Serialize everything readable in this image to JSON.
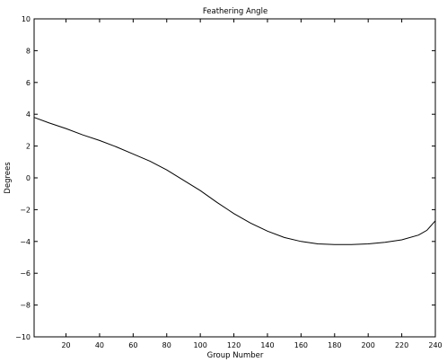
{
  "chart_data": {
    "type": "line",
    "title": "Feathering Angle",
    "xlabel": "Group Number",
    "ylabel": "Degrees",
    "xlim": [
      1,
      240
    ],
    "ylim": [
      -10,
      10
    ],
    "xticks": [
      "20",
      "40",
      "60",
      "80",
      "100",
      "120",
      "140",
      "160",
      "180",
      "200",
      "220",
      "240"
    ],
    "xtick_values": [
      20,
      40,
      60,
      80,
      100,
      120,
      140,
      160,
      180,
      200,
      220,
      240
    ],
    "yticks": [
      "10",
      "8",
      "6",
      "4",
      "2",
      "0",
      "−2",
      "−4",
      "−6",
      "−8",
      "−10"
    ],
    "ytick_values": [
      10,
      8,
      6,
      4,
      2,
      0,
      -2,
      -4,
      -6,
      -8,
      -10
    ],
    "grid": false,
    "series": [
      {
        "color": "#000000",
        "x": [
          1,
          10,
          20,
          30,
          40,
          50,
          60,
          70,
          80,
          90,
          100,
          110,
          120,
          130,
          140,
          150,
          160,
          170,
          180,
          190,
          200,
          210,
          220,
          230,
          235,
          240
        ],
        "y": [
          3.8,
          3.45,
          3.1,
          2.7,
          2.35,
          1.95,
          1.5,
          1.05,
          0.5,
          -0.15,
          -0.8,
          -1.55,
          -2.25,
          -2.85,
          -3.35,
          -3.75,
          -4.0,
          -4.15,
          -4.2,
          -4.2,
          -4.15,
          -4.05,
          -3.9,
          -3.6,
          -3.3,
          -2.7
        ]
      }
    ]
  }
}
